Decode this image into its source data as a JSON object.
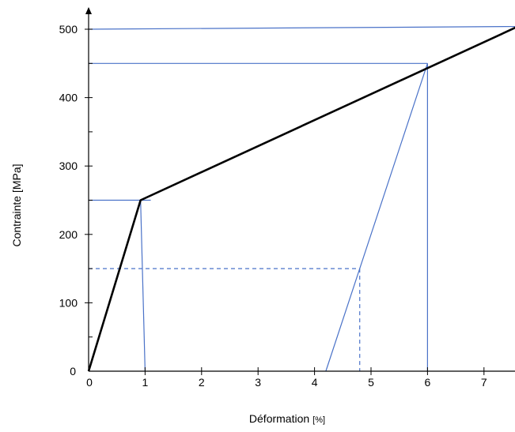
{
  "chart_data": {
    "type": "line",
    "xlabel": "Déformation",
    "xlabel_unit": "[%]",
    "ylabel": "Contrainte [MPa]",
    "xlim": [
      0,
      7.6
    ],
    "ylim": [
      0,
      500
    ],
    "x_ticks": [
      "0",
      "1",
      "2",
      "3",
      "4",
      "5",
      "6",
      "7"
    ],
    "y_ticks": [
      "0",
      "100",
      "200",
      "300",
      "400",
      "500"
    ],
    "y_minor_ticks": [
      50,
      150,
      250,
      350,
      450
    ],
    "series": [
      {
        "style": "stress-strain",
        "color": "#000000",
        "points": [
          [
            0,
            0
          ],
          [
            0.92,
            250
          ],
          [
            7.6,
            504
          ]
        ]
      }
    ],
    "reference_lines": [
      {
        "color": "#4a72c8",
        "dash": false,
        "points": [
          [
            0,
            500
          ],
          [
            7.6,
            504
          ]
        ]
      },
      {
        "color": "#4a72c8",
        "dash": false,
        "points": [
          [
            0,
            450
          ],
          [
            6.0,
            450
          ]
        ]
      },
      {
        "color": "#4a72c8",
        "dash": false,
        "points": [
          [
            6.0,
            450
          ],
          [
            6.0,
            0
          ]
        ]
      },
      {
        "color": "#4a72c8",
        "dash": false,
        "points": [
          [
            4.2,
            0
          ],
          [
            6.0,
            450
          ]
        ]
      },
      {
        "color": "#4a72c8",
        "dash": false,
        "points": [
          [
            0,
            250
          ],
          [
            1.1,
            250
          ]
        ]
      },
      {
        "color": "#4a72c8",
        "dash": false,
        "points": [
          [
            0.92,
            250
          ],
          [
            1.0,
            0
          ]
        ]
      },
      {
        "color": "#4a72c8",
        "dash": true,
        "points": [
          [
            0,
            150
          ],
          [
            4.8,
            150
          ]
        ]
      },
      {
        "color": "#4a72c8",
        "dash": true,
        "points": [
          [
            4.8,
            150
          ],
          [
            4.8,
            0
          ]
        ]
      }
    ]
  }
}
